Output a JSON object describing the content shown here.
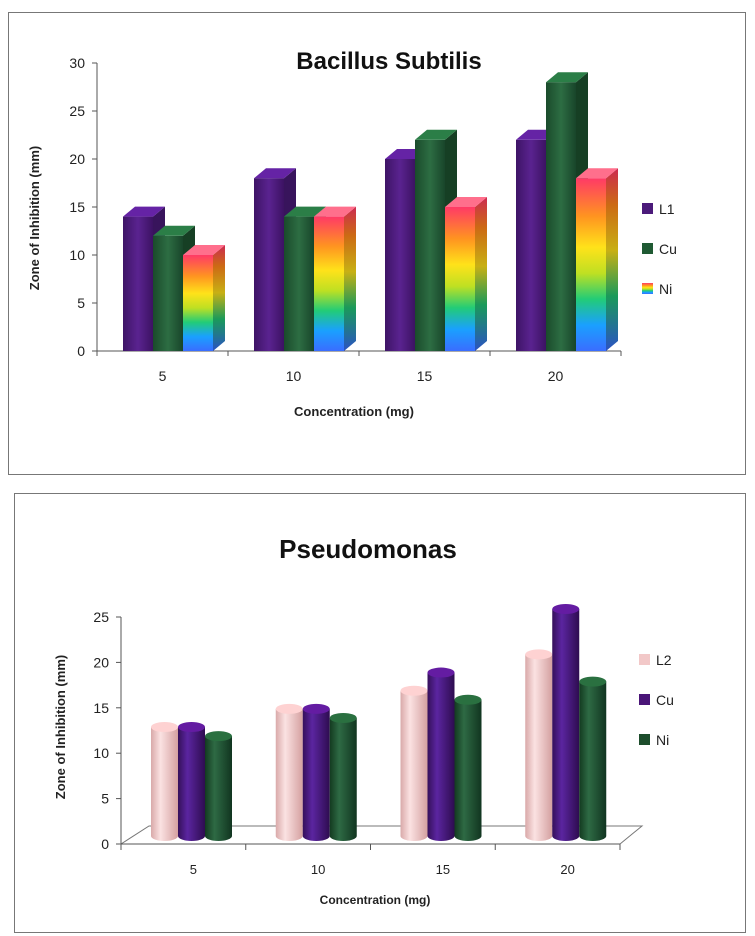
{
  "chart_data": [
    {
      "type": "bar",
      "title": "Bacillus Subtilis",
      "xlabel": "Concentration (mg)",
      "ylabel": "Zone of Inhibition (mm)",
      "categories": [
        "5",
        "10",
        "15",
        "20"
      ],
      "ylim": [
        0,
        30
      ],
      "yticks": [
        0,
        5,
        10,
        15,
        20,
        25,
        30
      ],
      "legend": "right",
      "grid": false,
      "series": [
        {
          "name": "L1",
          "values": [
            14,
            18,
            20,
            22
          ],
          "color": "#4b1a7a"
        },
        {
          "name": "Cu",
          "values": [
            12,
            14,
            22,
            28
          ],
          "color": "#1f5a33"
        },
        {
          "name": "Ni",
          "values": [
            10,
            14,
            15,
            18
          ],
          "color": "#ff5566"
        }
      ]
    },
    {
      "type": "bar",
      "title": "Pseudomonas",
      "xlabel": "Concentration (mg)",
      "ylabel": "Zone of Inhibition (mm)",
      "categories": [
        "5",
        "10",
        "15",
        "20"
      ],
      "ylim": [
        0,
        25
      ],
      "yticks": [
        0,
        5,
        10,
        15,
        20,
        25
      ],
      "legend": "right",
      "grid": false,
      "series": [
        {
          "name": "L2",
          "values": [
            12,
            14,
            16,
            20
          ],
          "color": "#f2c8c8"
        },
        {
          "name": "Cu",
          "values": [
            12,
            14,
            18,
            25
          ],
          "color": "#4a1578"
        },
        {
          "name": "Ni",
          "values": [
            11,
            13,
            15,
            17
          ],
          "color": "#1d4d2c"
        }
      ]
    }
  ]
}
